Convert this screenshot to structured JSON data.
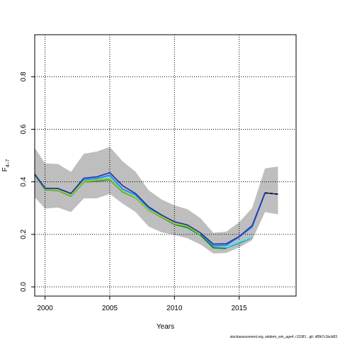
{
  "chart_data": {
    "type": "line",
    "title": "",
    "xlabel": "Years",
    "ylabel": "F",
    "ylabel_subscript": "4–7",
    "xlim": [
      1999.2,
      2019.4
    ],
    "ylim": [
      -0.035,
      0.96
    ],
    "x_ticks": [
      2000,
      2005,
      2010,
      2015
    ],
    "y_ticks": [
      0.0,
      0.2,
      0.4,
      0.6,
      0.8
    ],
    "y_tick_labels": [
      "0.0",
      "0.2",
      "0.4",
      "0.6",
      "0.8"
    ],
    "grid": true,
    "grid_style": "dotted",
    "confidence_band": {
      "color": "#bebebe",
      "x": [
        1999,
        2000,
        2001,
        2002,
        2003,
        2004,
        2005,
        2006,
        2007,
        2008,
        2009,
        2010,
        2011,
        2012,
        2013,
        2014,
        2015,
        2016,
        2017,
        2018
      ],
      "upper": [
        0.545,
        0.47,
        0.468,
        0.438,
        0.507,
        0.515,
        0.533,
        0.478,
        0.438,
        0.368,
        0.333,
        0.31,
        0.296,
        0.262,
        0.206,
        0.21,
        0.246,
        0.3,
        0.451,
        0.458
      ],
      "lower": [
        0.352,
        0.298,
        0.302,
        0.285,
        0.337,
        0.337,
        0.354,
        0.317,
        0.285,
        0.23,
        0.208,
        0.198,
        0.185,
        0.162,
        0.127,
        0.129,
        0.15,
        0.178,
        0.285,
        0.276
      ]
    },
    "series": [
      {
        "color": "#20b2aa",
        "x": [
          1999,
          2000,
          2001,
          2002,
          2003,
          2004,
          2005,
          2006,
          2007,
          2008,
          2009,
          2010,
          2011,
          2012,
          2013,
          2014,
          2015,
          2016
        ],
        "values": [
          0.44,
          0.372,
          0.369,
          0.348,
          0.402,
          0.405,
          0.41,
          0.361,
          0.34,
          0.297,
          0.267,
          0.238,
          0.225,
          0.197,
          0.15,
          0.149,
          0.166,
          0.188
        ]
      },
      {
        "color": "#87ceeb",
        "x": [
          1999,
          2000,
          2001,
          2002,
          2003,
          2004,
          2005,
          2006,
          2007,
          2008,
          2009,
          2010,
          2011,
          2012,
          2013,
          2014,
          2015,
          2016
        ],
        "values": [
          0.441,
          0.374,
          0.372,
          0.352,
          0.405,
          0.409,
          0.418,
          0.365,
          0.345,
          0.298,
          0.268,
          0.24,
          0.228,
          0.198,
          0.152,
          0.152,
          0.172,
          0.19
        ]
      },
      {
        "color": "#1e90ff",
        "x": [
          1999,
          2000,
          2001,
          2002,
          2003,
          2004,
          2005,
          2006,
          2007,
          2008,
          2009,
          2010,
          2011,
          2012,
          2013,
          2014,
          2015,
          2016,
          2017
        ],
        "values": [
          0.442,
          0.376,
          0.374,
          0.355,
          0.408,
          0.413,
          0.425,
          0.372,
          0.35,
          0.3,
          0.27,
          0.242,
          0.231,
          0.2,
          0.156,
          0.158,
          0.19,
          0.228,
          0.358
        ]
      },
      {
        "color": "#228b22",
        "x": [
          1999,
          2000,
          2001,
          2002,
          2003,
          2004,
          2005,
          2006,
          2007,
          2008,
          2009,
          2010,
          2011,
          2012,
          2013,
          2014
        ],
        "values": [
          0.443,
          0.37,
          0.367,
          0.346,
          0.4,
          0.403,
          0.409,
          0.362,
          0.339,
          0.293,
          0.266,
          0.238,
          0.228,
          0.198,
          0.149,
          0.146
        ]
      },
      {
        "color": "#9acd32",
        "x": [
          1999,
          2000,
          2001,
          2002,
          2003,
          2004,
          2005,
          2006,
          2007,
          2008,
          2009,
          2010,
          2011,
          2012
        ],
        "values": [
          0.445,
          0.372,
          0.369,
          0.348,
          0.402,
          0.407,
          0.412,
          0.364,
          0.34,
          0.294,
          0.268,
          0.241,
          0.232,
          0.2
        ]
      },
      {
        "color": "#2b2b9e",
        "x": [
          1999,
          2000,
          2001,
          2002,
          2003,
          2004,
          2005,
          2006,
          2007,
          2008,
          2009,
          2010,
          2011,
          2012,
          2013,
          2014,
          2015,
          2016,
          2017,
          2018
        ],
        "values": [
          0.443,
          0.375,
          0.375,
          0.356,
          0.414,
          0.419,
          0.435,
          0.385,
          0.355,
          0.305,
          0.274,
          0.248,
          0.236,
          0.206,
          0.163,
          0.164,
          0.192,
          0.233,
          0.358,
          0.353
        ]
      }
    ],
    "projection": {
      "color": "#000000",
      "style": "dashed",
      "x": [
        2017,
        2018
      ],
      "values": [
        0.358,
        0.353
      ]
    }
  },
  "footnote": "stockassessment.org, wkdem_win_age4, r11581 , git: df0b7c1bcb83"
}
